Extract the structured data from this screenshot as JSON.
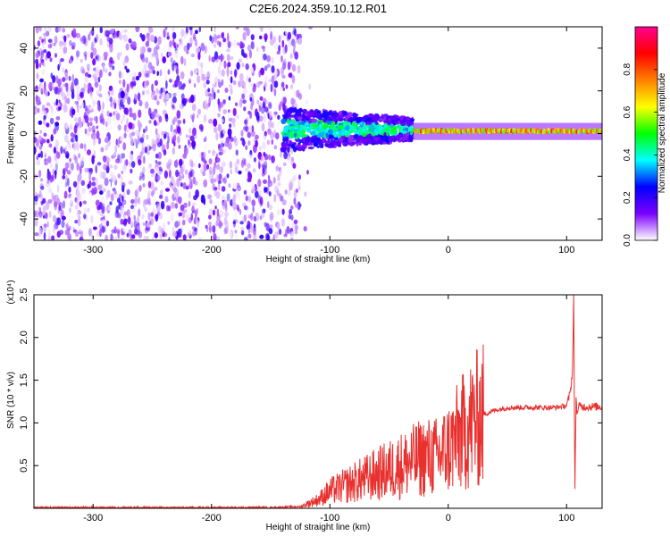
{
  "title": "C2E6.2024.359.10.12.R01",
  "chart_data": [
    {
      "type": "heatmap",
      "name": "spectrogram",
      "xlabel": "Height of straight line (km)",
      "ylabel": "Frequency (Hz)",
      "xlim": [
        -350,
        130
      ],
      "ylim": [
        -50,
        50
      ],
      "x_ticks": [
        -300,
        -200,
        -100,
        0,
        100
      ],
      "y_ticks": [
        -40,
        -20,
        0,
        20,
        40
      ],
      "colorbar": {
        "label": "Normalized spectral amplitude",
        "range": [
          0.0,
          1.0
        ],
        "ticks": [
          0.0,
          0.2,
          0.4,
          0.6,
          0.8
        ],
        "tick_labels": [
          "0.0",
          "0.2",
          "0.4",
          "0.6",
          "0.8"
        ],
        "colormap": [
          "#ffffff",
          "#7b00ff",
          "#0000ff",
          "#00ffff",
          "#00ff00",
          "#ffff00",
          "#ff8000",
          "#ff0000",
          "#ff0090"
        ]
      },
      "regions": [
        {
          "x": [
            -350,
            -125
          ],
          "y": [
            -50,
            50
          ],
          "pattern": "broadband speckle",
          "value": 0.15
        },
        {
          "x": [
            -140,
            -30
          ],
          "y": [
            -8,
            12
          ],
          "pattern": "band near 0 Hz",
          "value": 0.4
        },
        {
          "x": [
            -30,
            130
          ],
          "y": [
            -2,
            3
          ],
          "pattern": "narrow line near 0 Hz",
          "value": 0.65
        }
      ]
    },
    {
      "type": "line",
      "name": "snr",
      "xlabel": "Height of straight line (km)",
      "ylabel": "SNR (10 * v/v)",
      "y_multiplier": "(x10⁴)",
      "xlim": [
        -350,
        130
      ],
      "ylim": [
        0,
        2.5
      ],
      "x_ticks": [
        -300,
        -200,
        -100,
        0,
        100
      ],
      "y_ticks": [
        0.5,
        1.0,
        1.5,
        2.0,
        2.5
      ],
      "y_tick_labels": [
        "0.5",
        "1.0",
        "1.5",
        "2.0",
        "2.5"
      ],
      "color": "#e8302e",
      "series": [
        {
          "x": [
            -350,
            -300,
            -250,
            -200,
            -150,
            -125,
            -110,
            -100,
            -90,
            -80,
            -70,
            -60,
            -50,
            -40,
            -30,
            -20,
            -10,
            0,
            10,
            20,
            30,
            40,
            50,
            60,
            70,
            80,
            90,
            100,
            103,
            105,
            106,
            107,
            108,
            109,
            110,
            112,
            120,
            130
          ],
          "y": [
            0.01,
            0.01,
            0.01,
            0.01,
            0.01,
            0.02,
            0.1,
            0.2,
            0.25,
            0.3,
            0.35,
            0.4,
            0.45,
            0.5,
            0.55,
            0.6,
            0.6,
            0.7,
            0.85,
            1.0,
            1.1,
            1.15,
            1.18,
            1.18,
            1.18,
            1.18,
            1.18,
            1.2,
            1.35,
            1.6,
            2.5,
            0.15,
            1.3,
            1.1,
            1.2,
            1.19,
            1.19,
            1.19
          ]
        }
      ]
    }
  ]
}
